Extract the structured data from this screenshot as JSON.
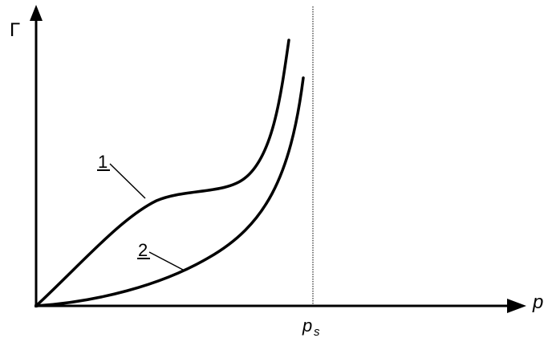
{
  "axes": {
    "y_label": "Γ",
    "x_label": "p"
  },
  "marker": {
    "label": "p",
    "subscript": "s"
  },
  "curves": [
    {
      "label": "1"
    },
    {
      "label": "2"
    }
  ]
}
